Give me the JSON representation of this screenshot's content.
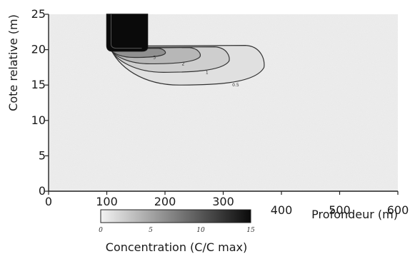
{
  "chart_data": {
    "type": "heatmap",
    "title": "",
    "xlabel": "Profondeur (m)",
    "ylabel": "Cote relative (m)",
    "xlim": [
      0,
      600
    ],
    "ylim": [
      0,
      25
    ],
    "x_ticks": [
      "0",
      "100",
      "200",
      "300",
      "400",
      "500",
      "600"
    ],
    "y_ticks": [
      "0",
      "5",
      "10",
      "15",
      "20",
      "25"
    ],
    "grid": false,
    "source": {
      "x_range": [
        100,
        170
      ],
      "y_range": [
        20,
        25
      ],
      "value": 15
    },
    "plume_contours": [
      {
        "level": 0.5,
        "label": "0.5",
        "x_max": 370,
        "y_min": 15,
        "y_max": 20.5
      },
      {
        "level": 1,
        "label": "1",
        "x_max": 310,
        "y_min": 16.8,
        "y_max": 20.3
      },
      {
        "level": 2,
        "label": "2",
        "x_max": 260,
        "y_min": 18,
        "y_max": 20.2
      },
      {
        "level": 5,
        "label": "5",
        "x_max": 200,
        "y_min": 18.9,
        "y_max": 20.1
      }
    ],
    "colorbar": {
      "label": "Concentration (C/C max)",
      "min": 0,
      "max": 15,
      "ticks": [
        "0",
        "5",
        "10",
        "15"
      ],
      "colors": [
        "#f2f2f2",
        "#0a0a0a"
      ]
    }
  }
}
